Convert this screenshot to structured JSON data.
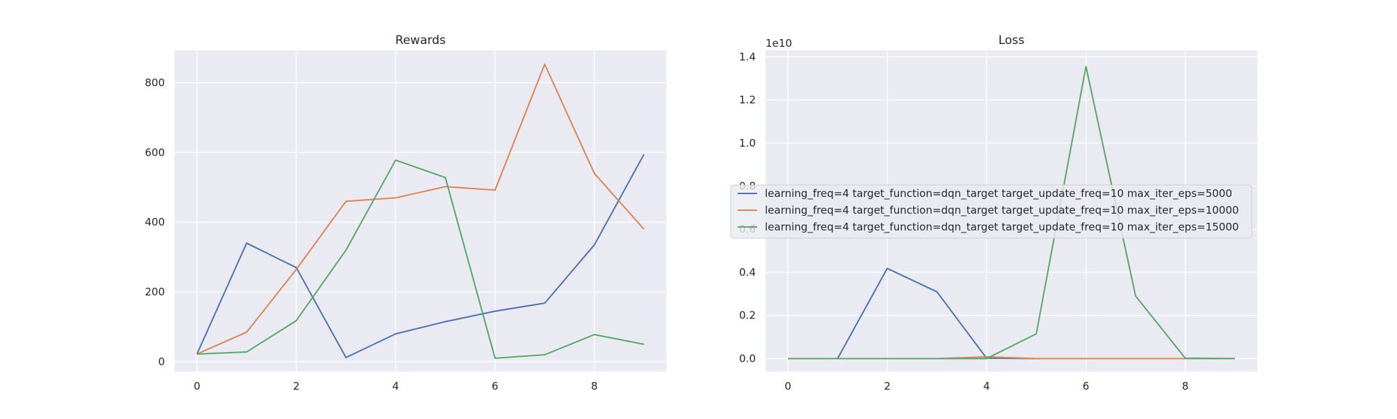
{
  "chart_data": [
    {
      "type": "line",
      "title": "Rewards",
      "xlabel": "",
      "ylabel": "",
      "x": [
        0,
        1,
        2,
        3,
        4,
        5,
        6,
        7,
        8,
        9
      ],
      "xlim": [
        -0.45,
        9.45
      ],
      "ylim": [
        -28,
        893
      ],
      "xticks": [
        0,
        2,
        4,
        6,
        8
      ],
      "yticks": [
        0,
        200,
        400,
        600,
        800
      ],
      "xtick_labels": [
        "0",
        "2",
        "4",
        "6",
        "8"
      ],
      "ytick_labels": [
        "0",
        "200",
        "400",
        "600",
        "800"
      ],
      "grid": true,
      "series": [
        {
          "name": "learning_freq=4 target_function=dqn_target target_update_freq=10 max_iter_eps=5000",
          "color": "#4c72b0",
          "values": [
            22,
            340,
            270,
            12,
            80,
            115,
            145,
            168,
            335,
            595
          ]
        },
        {
          "name": "learning_freq=4 target_function=dqn_target target_update_freq=10 max_iter_eps=10000",
          "color": "#dd8452",
          "values": [
            22,
            85,
            265,
            460,
            470,
            502,
            492,
            853,
            540,
            380
          ]
        },
        {
          "name": "learning_freq=4 target_function=dqn_target target_update_freq=10 max_iter_eps=15000",
          "color": "#55a868",
          "values": [
            22,
            28,
            118,
            320,
            578,
            528,
            10,
            20,
            78,
            50
          ]
        }
      ]
    },
    {
      "type": "line",
      "title": "Loss",
      "xlabel": "",
      "ylabel": "",
      "scale_label": "1e10",
      "x": [
        0,
        1,
        2,
        3,
        4,
        5,
        6,
        7,
        8,
        9
      ],
      "xlim": [
        -0.45,
        9.45
      ],
      "ylim": [
        -0.06,
        1.43
      ],
      "xticks": [
        0,
        2,
        4,
        6,
        8
      ],
      "yticks": [
        0.0,
        0.2,
        0.4,
        0.6,
        0.8,
        1.0,
        1.2,
        1.4
      ],
      "xtick_labels": [
        "0",
        "2",
        "4",
        "6",
        "8"
      ],
      "ytick_labels": [
        "0.0",
        "0.2",
        "0.4",
        "0.6",
        "0.8",
        "1.0",
        "1.2",
        "1.4"
      ],
      "grid": true,
      "legend_position": "center",
      "series": [
        {
          "name": "learning_freq=4 target_function=dqn_target target_update_freq=10 max_iter_eps=5000",
          "color": "#4c72b0",
          "values": [
            0.0,
            0.0,
            0.418,
            0.31,
            0.002,
            0.0,
            0.0,
            0.0,
            0.0,
            0.0
          ]
        },
        {
          "name": "learning_freq=4 target_function=dqn_target target_update_freq=10 max_iter_eps=10000",
          "color": "#dd8452",
          "values": [
            0.0,
            0.0,
            0.0,
            0.0,
            0.008,
            0.0,
            0.0,
            0.0,
            0.0,
            0.0
          ]
        },
        {
          "name": "learning_freq=4 target_function=dqn_target target_update_freq=10 max_iter_eps=15000",
          "color": "#55a868",
          "values": [
            0.0,
            0.0,
            0.0,
            0.0,
            0.0,
            0.115,
            1.355,
            0.29,
            0.002,
            0.0
          ]
        }
      ]
    }
  ]
}
